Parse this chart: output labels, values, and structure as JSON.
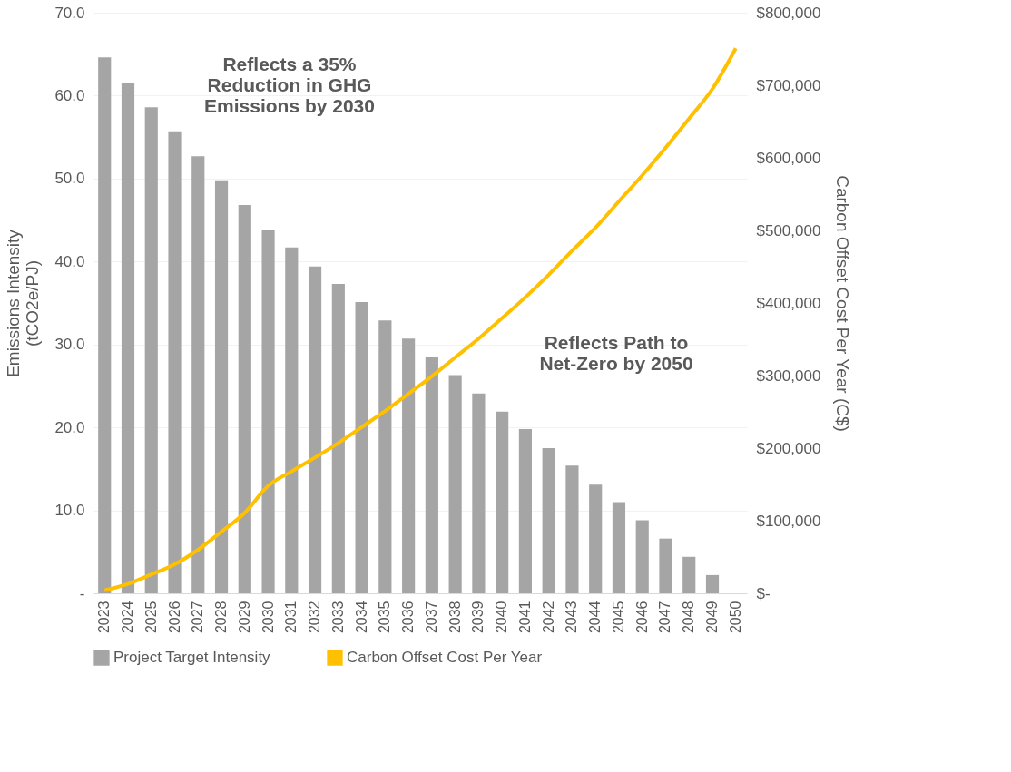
{
  "chart_data": {
    "type": "bar",
    "categories": [
      "2023",
      "2024",
      "2025",
      "2026",
      "2027",
      "2028",
      "2029",
      "2030",
      "2031",
      "2032",
      "2033",
      "2034",
      "2035",
      "2036",
      "2037",
      "2038",
      "2039",
      "2040",
      "2041",
      "2042",
      "2043",
      "2044",
      "2045",
      "2046",
      "2047",
      "2048",
      "2049",
      "2050"
    ],
    "series": [
      {
        "name": "Project Target Intensity",
        "color": "#a5a5a5",
        "values": [
          64.6,
          61.5,
          58.6,
          55.7,
          52.7,
          49.8,
          46.8,
          43.8,
          41.7,
          39.4,
          37.3,
          35.1,
          32.9,
          30.7,
          28.5,
          26.3,
          24.1,
          21.9,
          19.8,
          17.5,
          15.4,
          13.1,
          11.0,
          8.8,
          6.6,
          4.4,
          2.2,
          0
        ]
      },
      {
        "name": "Carbon Offset Cost Per Year",
        "type": "line",
        "axis": "y2",
        "color": "#ffc000",
        "values": [
          4000,
          13000,
          26000,
          40000,
          60000,
          85000,
          111000,
          148000,
          168000,
          187000,
          207000,
          229000,
          251000,
          275000,
          299000,
          325000,
          351000,
          379000,
          408000,
          439000,
          472000,
          504000,
          540000,
          576000,
          614000,
          654000,
          695000,
          751000
        ]
      }
    ],
    "ylabel": "Emissions Intensity\n(tCO2e/PJ)",
    "y2label": "Carbon Offset Cost Per Year (C$)",
    "ylim": [
      0,
      70
    ],
    "yticks": [
      {
        "value": 0,
        "label": "-"
      },
      {
        "value": 10,
        "label": "10.0"
      },
      {
        "value": 20,
        "label": "20.0"
      },
      {
        "value": 30,
        "label": "30.0"
      },
      {
        "value": 40,
        "label": "40.0"
      },
      {
        "value": 50,
        "label": "50.0"
      },
      {
        "value": 60,
        "label": "60.0"
      },
      {
        "value": 70,
        "label": "70.0"
      }
    ],
    "y2lim": [
      0,
      800000
    ],
    "y2ticks": [
      {
        "value": 0,
        "label": "$-"
      },
      {
        "value": 100000,
        "label": "$100,000"
      },
      {
        "value": 200000,
        "label": "$200,000"
      },
      {
        "value": 300000,
        "label": "$300,000"
      },
      {
        "value": 400000,
        "label": "$400,000"
      },
      {
        "value": 500000,
        "label": "$500,000"
      },
      {
        "value": 600000,
        "label": "$600,000"
      },
      {
        "value": 700000,
        "label": "$700,000"
      },
      {
        "value": 800000,
        "label": "$800,000"
      }
    ],
    "annotations": [
      "Reflects a 35%\nReduction in GHG\nEmissions by 2030",
      "Reflects Path to\nNet-Zero by 2050"
    ],
    "grid": "y",
    "legend": "bottom"
  }
}
